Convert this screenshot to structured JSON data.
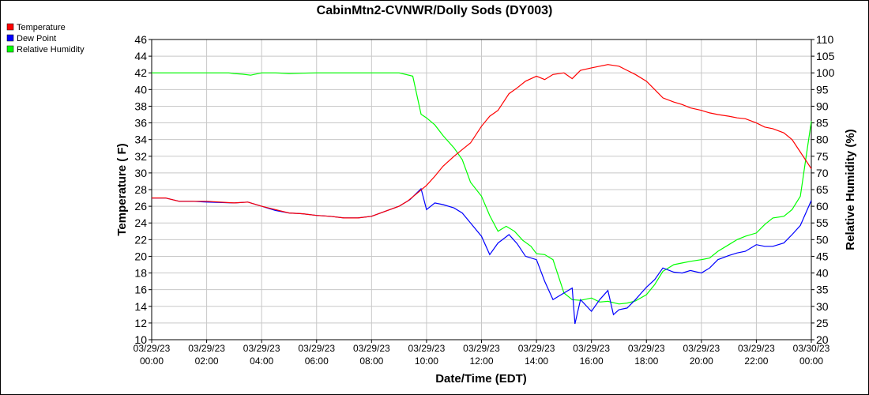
{
  "chart_data": {
    "type": "line",
    "title": "CabinMtn2-CVNWR/Dolly Sods (DY003)",
    "xlabel": "Date/Time (EDT)",
    "ylabel_left": "Temperature ( F)",
    "ylabel_right": "Relative Humidity (%)",
    "ylim_left": [
      10,
      46
    ],
    "ylim_right": [
      20,
      110
    ],
    "yticks_left": [
      10,
      12,
      14,
      16,
      18,
      20,
      22,
      24,
      26,
      28,
      30,
      32,
      34,
      36,
      38,
      40,
      42,
      44,
      46
    ],
    "yticks_right": [
      20,
      25,
      30,
      35,
      40,
      45,
      50,
      55,
      60,
      65,
      70,
      75,
      80,
      85,
      90,
      95,
      100,
      105,
      110
    ],
    "xlim_hours": [
      0,
      24
    ],
    "x_ticks": [
      {
        "hour": 0,
        "date": "03/29/23",
        "time": "00:00"
      },
      {
        "hour": 2,
        "date": "03/29/23",
        "time": "02:00"
      },
      {
        "hour": 4,
        "date": "03/29/23",
        "time": "04:00"
      },
      {
        "hour": 6,
        "date": "03/29/23",
        "time": "06:00"
      },
      {
        "hour": 8,
        "date": "03/29/23",
        "time": "08:00"
      },
      {
        "hour": 10,
        "date": "03/29/23",
        "time": "10:00"
      },
      {
        "hour": 12,
        "date": "03/29/23",
        "time": "12:00"
      },
      {
        "hour": 14,
        "date": "03/29/23",
        "time": "14:00"
      },
      {
        "hour": 16,
        "date": "03/29/23",
        "time": "16:00"
      },
      {
        "hour": 18,
        "date": "03/29/23",
        "time": "18:00"
      },
      {
        "hour": 20,
        "date": "03/29/23",
        "time": "20:00"
      },
      {
        "hour": 22,
        "date": "03/29/23",
        "time": "22:00"
      },
      {
        "hour": 24,
        "date": "03/30/23",
        "time": "00:00"
      }
    ],
    "grid": true,
    "legend_placement": "top-left",
    "series": [
      {
        "name": "Temperature",
        "axis": "left",
        "color": "#ff0000",
        "points": [
          [
            0,
            27
          ],
          [
            0.5,
            27
          ],
          [
            1,
            26.6
          ],
          [
            1.5,
            26.6
          ],
          [
            2,
            26.6
          ],
          [
            3,
            26.4
          ],
          [
            3.5,
            26.5
          ],
          [
            4,
            26.0
          ],
          [
            4.5,
            25.6
          ],
          [
            5,
            25.2
          ],
          [
            5.5,
            25.1
          ],
          [
            6,
            24.9
          ],
          [
            6.5,
            24.8
          ],
          [
            7,
            24.6
          ],
          [
            7.5,
            24.6
          ],
          [
            8,
            24.8
          ],
          [
            8.5,
            25.4
          ],
          [
            9,
            26.0
          ],
          [
            9.3,
            26.6
          ],
          [
            9.6,
            27.4
          ],
          [
            10,
            28.5
          ],
          [
            10.3,
            29.6
          ],
          [
            10.6,
            30.8
          ],
          [
            11,
            32.0
          ],
          [
            11.3,
            32.8
          ],
          [
            11.6,
            33.6
          ],
          [
            12,
            35.6
          ],
          [
            12.3,
            36.8
          ],
          [
            12.6,
            37.5
          ],
          [
            13,
            39.5
          ],
          [
            13.3,
            40.2
          ],
          [
            13.6,
            41.0
          ],
          [
            14,
            41.6
          ],
          [
            14.3,
            41.2
          ],
          [
            14.6,
            41.8
          ],
          [
            15,
            42.0
          ],
          [
            15.3,
            41.3
          ],
          [
            15.6,
            42.3
          ],
          [
            16,
            42.6
          ],
          [
            16.3,
            42.8
          ],
          [
            16.6,
            43.0
          ],
          [
            17,
            42.8
          ],
          [
            17.3,
            42.3
          ],
          [
            17.6,
            41.8
          ],
          [
            18,
            41.0
          ],
          [
            18.3,
            40.0
          ],
          [
            18.6,
            39.0
          ],
          [
            19,
            38.5
          ],
          [
            19.3,
            38.2
          ],
          [
            19.6,
            37.8
          ],
          [
            20,
            37.5
          ],
          [
            20.3,
            37.2
          ],
          [
            20.6,
            37.0
          ],
          [
            21,
            36.8
          ],
          [
            21.3,
            36.6
          ],
          [
            21.6,
            36.5
          ],
          [
            22,
            36.0
          ],
          [
            22.3,
            35.5
          ],
          [
            22.6,
            35.3
          ],
          [
            23,
            34.8
          ],
          [
            23.3,
            34.0
          ],
          [
            23.6,
            32.5
          ],
          [
            24,
            30.5
          ]
        ]
      },
      {
        "name": "Dew Point",
        "axis": "left",
        "color": "#0000ff",
        "points": [
          [
            0,
            27
          ],
          [
            0.5,
            27
          ],
          [
            1,
            26.6
          ],
          [
            1.5,
            26.6
          ],
          [
            2,
            26.5
          ],
          [
            3,
            26.4
          ],
          [
            3.5,
            26.5
          ],
          [
            4,
            26.0
          ],
          [
            4.5,
            25.5
          ],
          [
            5,
            25.2
          ],
          [
            5.5,
            25.1
          ],
          [
            6,
            24.9
          ],
          [
            6.5,
            24.8
          ],
          [
            7,
            24.6
          ],
          [
            7.5,
            24.6
          ],
          [
            8,
            24.8
          ],
          [
            8.5,
            25.4
          ],
          [
            9,
            26.0
          ],
          [
            9.4,
            26.8
          ],
          [
            9.8,
            28.1
          ],
          [
            10,
            25.6
          ],
          [
            10.3,
            26.4
          ],
          [
            10.6,
            26.2
          ],
          [
            11,
            25.8
          ],
          [
            11.3,
            25.2
          ],
          [
            11.6,
            24.0
          ],
          [
            12,
            22.4
          ],
          [
            12.3,
            20.2
          ],
          [
            12.6,
            21.6
          ],
          [
            13,
            22.6
          ],
          [
            13.3,
            21.5
          ],
          [
            13.6,
            20.0
          ],
          [
            14,
            19.6
          ],
          [
            14.3,
            17.0
          ],
          [
            14.6,
            14.8
          ],
          [
            15,
            15.6
          ],
          [
            15.3,
            16.2
          ],
          [
            15.4,
            11.9
          ],
          [
            15.6,
            14.8
          ],
          [
            16,
            13.4
          ],
          [
            16.3,
            14.8
          ],
          [
            16.6,
            15.9
          ],
          [
            16.8,
            13.0
          ],
          [
            17,
            13.6
          ],
          [
            17.3,
            13.8
          ],
          [
            17.6,
            14.8
          ],
          [
            18,
            16.3
          ],
          [
            18.3,
            17.2
          ],
          [
            18.6,
            18.6
          ],
          [
            19,
            18.1
          ],
          [
            19.3,
            18.0
          ],
          [
            19.6,
            18.3
          ],
          [
            20,
            18.0
          ],
          [
            20.3,
            18.6
          ],
          [
            20.6,
            19.6
          ],
          [
            21,
            20.1
          ],
          [
            21.3,
            20.4
          ],
          [
            21.6,
            20.6
          ],
          [
            22,
            21.4
          ],
          [
            22.3,
            21.2
          ],
          [
            22.6,
            21.2
          ],
          [
            23,
            21.6
          ],
          [
            23.3,
            22.6
          ],
          [
            23.6,
            23.7
          ],
          [
            24,
            26.7
          ]
        ]
      },
      {
        "name": "Relative Humidity",
        "axis": "right",
        "color": "#00ff00",
        "points": [
          [
            0,
            100
          ],
          [
            1,
            100
          ],
          [
            2,
            100
          ],
          [
            2.8,
            100
          ],
          [
            3,
            99.8
          ],
          [
            3.3,
            99.6
          ],
          [
            3.6,
            99.3
          ],
          [
            4,
            100
          ],
          [
            4.5,
            100
          ],
          [
            5,
            99.8
          ],
          [
            6,
            100
          ],
          [
            7,
            100
          ],
          [
            8,
            100
          ],
          [
            9,
            100
          ],
          [
            9.5,
            99.0
          ],
          [
            9.8,
            87.6
          ],
          [
            10,
            86.5
          ],
          [
            10.3,
            84.4
          ],
          [
            10.6,
            81.2
          ],
          [
            11,
            77.5
          ],
          [
            11.3,
            74.0
          ],
          [
            11.6,
            67.2
          ],
          [
            12,
            63.0
          ],
          [
            12.3,
            57.2
          ],
          [
            12.6,
            52.5
          ],
          [
            12.9,
            54.0
          ],
          [
            13.2,
            52.5
          ],
          [
            13.5,
            49.8
          ],
          [
            13.8,
            48.0
          ],
          [
            14,
            45.8
          ],
          [
            14.3,
            45.5
          ],
          [
            14.6,
            44.0
          ],
          [
            15,
            34.0
          ],
          [
            15.3,
            32.0
          ],
          [
            15.6,
            31.8
          ],
          [
            16,
            32.5
          ],
          [
            16.3,
            31.3
          ],
          [
            16.6,
            31.5
          ],
          [
            17,
            30.7
          ],
          [
            17.3,
            31.0
          ],
          [
            17.6,
            31.6
          ],
          [
            18,
            33.5
          ],
          [
            18.3,
            36.5
          ],
          [
            18.6,
            40.5
          ],
          [
            19,
            42.5
          ],
          [
            19.3,
            43.0
          ],
          [
            19.6,
            43.5
          ],
          [
            20,
            44.0
          ],
          [
            20.3,
            44.5
          ],
          [
            20.6,
            46.5
          ],
          [
            21,
            48.5
          ],
          [
            21.3,
            50.0
          ],
          [
            21.6,
            51.0
          ],
          [
            22,
            52.0
          ],
          [
            22.3,
            54.5
          ],
          [
            22.6,
            56.5
          ],
          [
            23,
            57.0
          ],
          [
            23.3,
            59.0
          ],
          [
            23.6,
            63.0
          ],
          [
            24,
            85.5
          ]
        ]
      }
    ]
  }
}
